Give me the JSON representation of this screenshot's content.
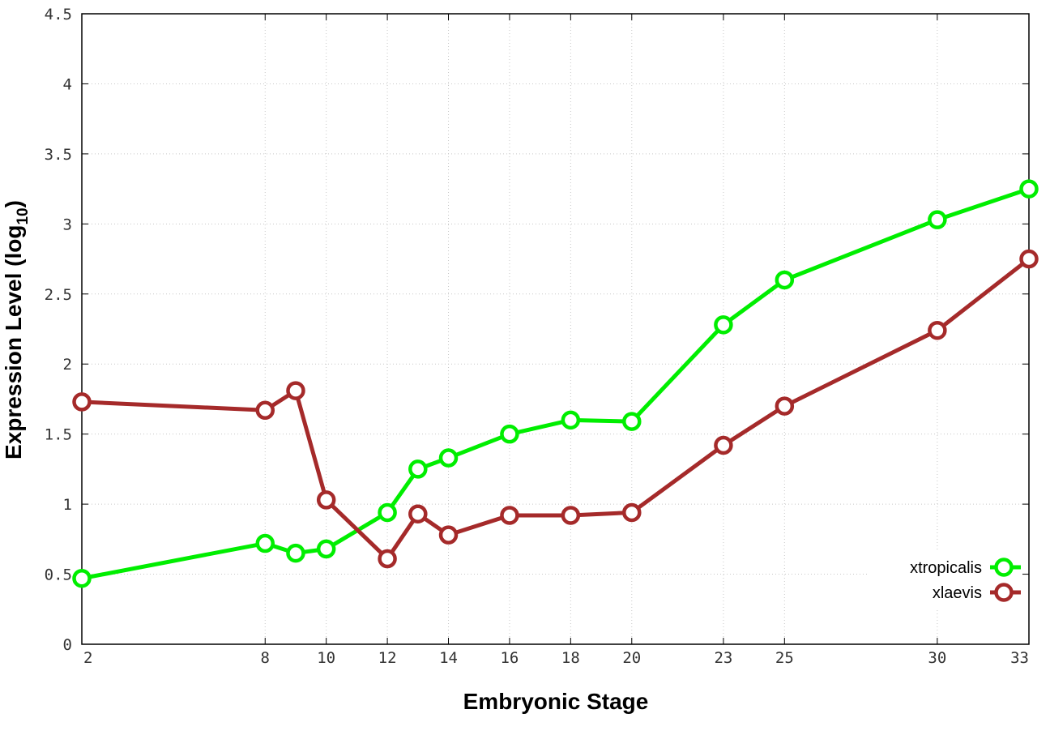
{
  "chart_data": {
    "type": "line",
    "xlabel": "Embryonic Stage",
    "ylabel_main": "Expression Level (log",
    "ylabel_sub": "10",
    "ylabel_close": ")",
    "xlim": [
      2,
      33
    ],
    "ylim": [
      0,
      4.5
    ],
    "x_ticks": [
      2,
      8,
      10,
      12,
      14,
      16,
      18,
      20,
      23,
      25,
      30,
      33
    ],
    "y_ticks": [
      0,
      0.5,
      1,
      1.5,
      2,
      2.5,
      3,
      3.5,
      4,
      4.5
    ],
    "y_tick_labels": [
      "0",
      "0.5",
      "1",
      "1.5",
      "2",
      "2.5",
      "3",
      "3.5",
      "4",
      "4.5"
    ],
    "x": [
      2,
      8,
      9,
      10,
      12,
      13,
      14,
      16,
      18,
      20,
      23,
      25,
      30,
      33
    ],
    "grid": true,
    "legend_position": "bottom-right",
    "series": [
      {
        "name": "xtropicalis",
        "color": "#00ee00",
        "values": [
          0.47,
          0.72,
          0.65,
          0.68,
          0.94,
          1.25,
          1.33,
          1.5,
          1.6,
          1.59,
          2.28,
          2.6,
          3.03,
          3.25
        ]
      },
      {
        "name": "xlaevis",
        "color": "#a52a2a",
        "values": [
          1.73,
          1.67,
          1.81,
          1.03,
          0.61,
          0.93,
          0.78,
          0.92,
          0.92,
          0.94,
          1.42,
          1.7,
          2.24,
          2.75
        ]
      }
    ]
  }
}
